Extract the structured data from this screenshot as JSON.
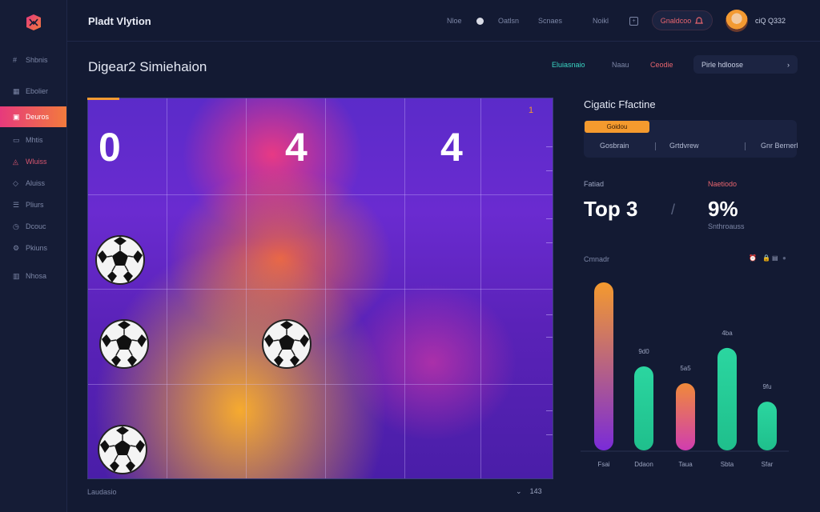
{
  "app": {
    "title": "Pladt Vlytion"
  },
  "sidebar": {
    "items": [
      {
        "label": "Shbnis",
        "icon": "hash-icon"
      },
      {
        "label": "Ebolier",
        "icon": "grid-icon"
      },
      {
        "label": "Deuros",
        "icon": "board-icon"
      },
      {
        "label": "Mhtis",
        "icon": "monitor-icon"
      },
      {
        "label": "Wluiss",
        "icon": "alert-icon"
      },
      {
        "label": "Aluiss",
        "icon": "tag-icon"
      },
      {
        "label": "Pliurs",
        "icon": "list-icon"
      },
      {
        "label": "Dcouc",
        "icon": "clock-icon"
      },
      {
        "label": "Pkiuns",
        "icon": "gear-icon"
      },
      {
        "label": "Nhosa",
        "icon": "stats-icon"
      }
    ]
  },
  "topbar": {
    "links": [
      "Nloe",
      "Oatlsn",
      "Scnaes",
      "Noikl"
    ],
    "pill_label": "Gnaldcoo",
    "user": "ciQ  Q332"
  },
  "header": {
    "title": "Digear2 Simiehaion",
    "links": [
      {
        "label": "Eluiasnaio",
        "color": "#3ad6c4"
      },
      {
        "label": "Naau",
        "color": "#7c86a6"
      },
      {
        "label": "Ceodie",
        "color": "#e8656e"
      }
    ],
    "select_value": "Pirle hdloose"
  },
  "board": {
    "scores": [
      "0",
      "4",
      "4"
    ],
    "corner_label": "1",
    "footer_left": "Laudasio",
    "footer_right": "143",
    "ball_count": 4
  },
  "panel": {
    "title": "Cigatic Ffactine",
    "tabs": [
      "Goidou",
      "Gosbrain",
      "Grtdvrew",
      "Gnr Bernerl"
    ],
    "stats": [
      {
        "label": "Fatiad",
        "value": "Top 3",
        "label_color": "#9aa3bf"
      },
      {
        "label": "Naetiodo",
        "value": "9%",
        "label_color": "#e8656e",
        "sub": "Snthroauss"
      }
    ],
    "chart_title": "Cmnadr"
  },
  "chart_data": {
    "type": "bar",
    "categories": [
      "Fsai",
      "Ddaon",
      "Taua",
      "Sbta",
      "Sfar"
    ],
    "values": [
      100,
      50,
      40,
      61,
      29
    ],
    "labels": [
      "",
      "9d0",
      "5a5",
      "4ba",
      "9fu"
    ],
    "colors": [
      [
        "#f49a2e",
        "#7a2bd8"
      ],
      [
        "#2bd6a0",
        "#1fbf8c"
      ],
      [
        "#f08a3a",
        "#d03db0"
      ],
      [
        "#2bd6a0",
        "#1fbf8c"
      ],
      [
        "#2bd6a0",
        "#1fbf8c"
      ]
    ],
    "ylim": [
      0,
      100
    ]
  }
}
